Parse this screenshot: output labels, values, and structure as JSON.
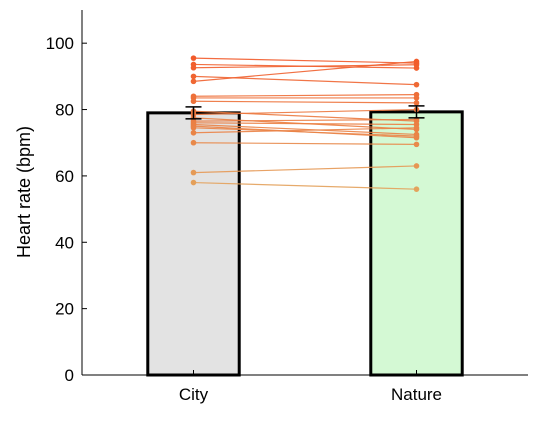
{
  "chart_data": {
    "type": "bar",
    "title": "",
    "xlabel": "",
    "ylabel": "Heart rate (bpm)",
    "ylim": [
      0,
      110
    ],
    "yticks": [
      0,
      20,
      40,
      60,
      80,
      100
    ],
    "categories": [
      "City",
      "Nature"
    ],
    "values": [
      79,
      79.3
    ],
    "errors": [
      1.8,
      1.8
    ],
    "bar_colors": [
      "#e3e3e3",
      "#d4f9d4"
    ],
    "bar_edge_color": "#000000",
    "paired_points": {
      "city": [
        95.5,
        93.6,
        92.6,
        90.0,
        88.5,
        84.0,
        83.5,
        82.5,
        79.5,
        78.5,
        77.5,
        76.5,
        76.0,
        75.5,
        75.0,
        74.5,
        73.0,
        70.0,
        61.0,
        58.0
      ],
      "nature": [
        94.0,
        92.5,
        93.5,
        87.5,
        94.5,
        84.5,
        83.5,
        82.0,
        76.5,
        80.0,
        74.0,
        77.0,
        75.5,
        72.5,
        71.5,
        72.0,
        74.5,
        69.5,
        63.0,
        56.0
      ]
    },
    "line_color_top": "#f25a2a",
    "line_color_bottom": "#e3a35c",
    "grid": false,
    "legend": "none"
  }
}
